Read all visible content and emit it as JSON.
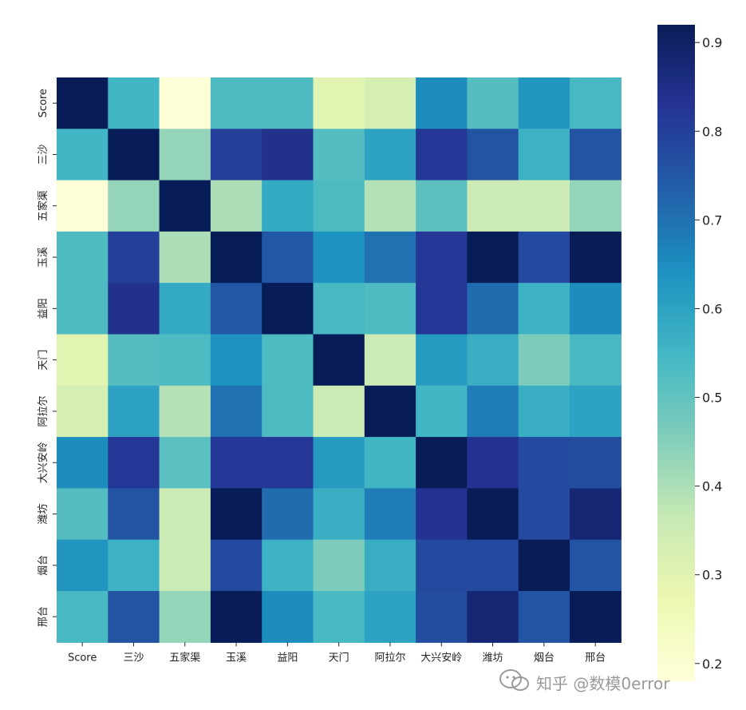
{
  "chart_data": {
    "type": "heatmap",
    "title": "",
    "xlabel": "",
    "ylabel": "",
    "labels": [
      "Score",
      "三沙",
      "五家渠",
      "玉溪",
      "益阳",
      "天门",
      "阿拉尔",
      "大兴安岭",
      "潍坊",
      "烟台",
      "邢台"
    ],
    "matrix": [
      [
        1.0,
        0.55,
        0.19,
        0.53,
        0.53,
        0.3,
        0.33,
        0.65,
        0.52,
        0.63,
        0.54
      ],
      [
        0.55,
        1.0,
        0.43,
        0.8,
        0.84,
        0.52,
        0.6,
        0.82,
        0.76,
        0.56,
        0.76
      ],
      [
        0.19,
        0.43,
        1.0,
        0.4,
        0.58,
        0.53,
        0.39,
        0.51,
        0.35,
        0.35,
        0.43
      ],
      [
        0.53,
        0.8,
        0.4,
        1.0,
        0.75,
        0.64,
        0.7,
        0.82,
        0.95,
        0.78,
        0.92
      ],
      [
        0.53,
        0.84,
        0.58,
        0.75,
        1.0,
        0.54,
        0.53,
        0.82,
        0.71,
        0.56,
        0.65
      ],
      [
        0.3,
        0.52,
        0.53,
        0.64,
        0.53,
        1.0,
        0.35,
        0.62,
        0.57,
        0.46,
        0.54
      ],
      [
        0.33,
        0.6,
        0.39,
        0.7,
        0.53,
        0.35,
        1.0,
        0.55,
        0.68,
        0.57,
        0.6
      ],
      [
        0.65,
        0.82,
        0.51,
        0.82,
        0.82,
        0.62,
        0.55,
        1.0,
        0.83,
        0.78,
        0.77
      ],
      [
        0.52,
        0.76,
        0.35,
        0.95,
        0.71,
        0.57,
        0.68,
        0.83,
        1.0,
        0.78,
        0.88
      ],
      [
        0.63,
        0.56,
        0.35,
        0.78,
        0.56,
        0.46,
        0.57,
        0.78,
        0.78,
        1.0,
        0.76
      ],
      [
        0.54,
        0.76,
        0.43,
        0.92,
        0.65,
        0.54,
        0.6,
        0.77,
        0.88,
        0.76,
        1.0
      ]
    ],
    "colormap": "YlGnBu",
    "vmin": 0.18,
    "vmax": 0.92,
    "colorbar_ticks": [
      0.2,
      0.3,
      0.4,
      0.5,
      0.6,
      0.7,
      0.8,
      0.9
    ],
    "colorbar_position": "right",
    "grid": false
  },
  "watermark": {
    "text": "知乎 @数模0error"
  }
}
